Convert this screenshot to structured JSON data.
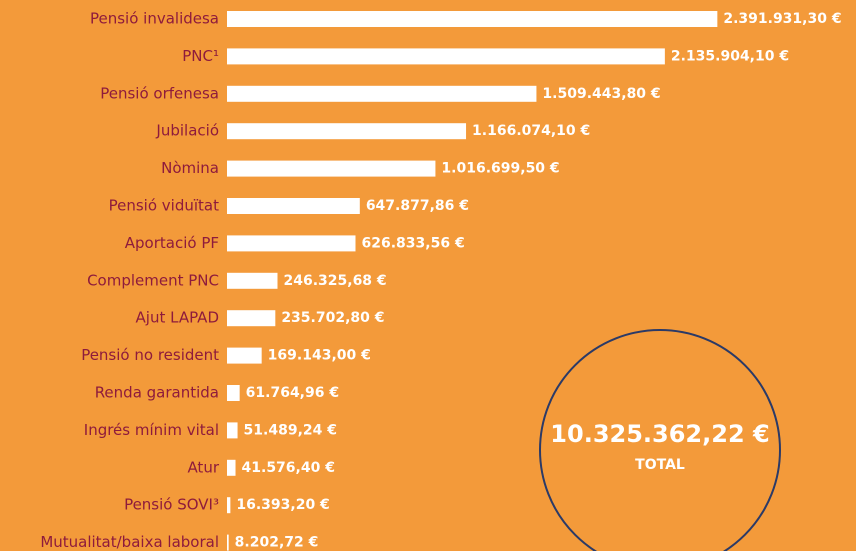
{
  "chart_data": {
    "type": "bar",
    "orientation": "horizontal",
    "categories": [
      "Pensió invalidesa",
      "PNC¹",
      "Pensió orfenesa",
      "Jubilació",
      "Nòmina",
      "Pensió viduïtat",
      "Aportació PF",
      "Complement PNC",
      "Ajut LAPAD",
      "Pensió no resident",
      "Renda garantida",
      "Ingrés mínim vital",
      "Atur",
      "Pensió SOVI³",
      "Mutualitat/baixa laboral"
    ],
    "values": [
      2391931.3,
      2135904.1,
      1509443.8,
      1166074.1,
      1016699.5,
      647877.86,
      626833.56,
      246325.68,
      235702.8,
      169143.0,
      61764.96,
      51489.24,
      41576.4,
      16393.2,
      8202.72
    ],
    "value_labels": [
      "2.391.931,30 €",
      "2.135.904,10 €",
      "1.509.443,80 €",
      "1.166.074,10 €",
      "1.016.699,50 €",
      "647.877,86 €",
      "626.833,56 €",
      "246.325,68 €",
      "235.702,80 €",
      "169.143,00 €",
      "61.764,96 €",
      "51.489,24 €",
      "41.576,40 €",
      "16.393,20 €",
      "8.202,72 €"
    ],
    "color": "#ffffff",
    "xlim": [
      0,
      2400000
    ],
    "total_label": "10.325.362,22 €",
    "total_caption": "TOTAL"
  }
}
